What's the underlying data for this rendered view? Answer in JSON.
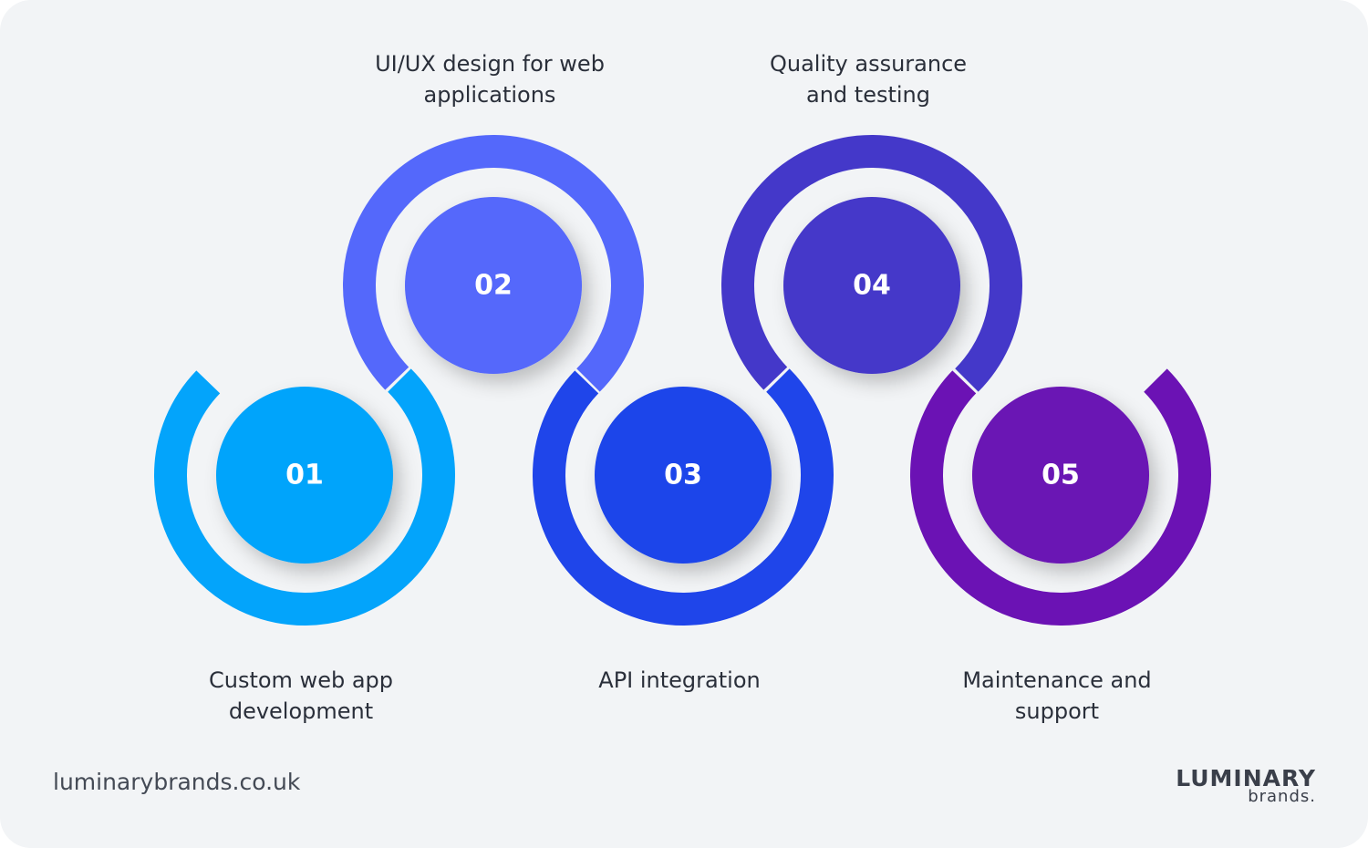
{
  "steps": [
    {
      "number": "01",
      "label_lines": [
        "Custom web app",
        "development"
      ],
      "color": "#03a4fb"
    },
    {
      "number": "02",
      "label_lines": [
        "UI/UX design for web",
        "applications"
      ],
      "color": "#5468fb"
    },
    {
      "number": "03",
      "label_lines": [
        "API integration"
      ],
      "color": "#1f45ea"
    },
    {
      "number": "04",
      "label_lines": [
        "Quality assurance",
        "and testing"
      ],
      "color": "#4438c9"
    },
    {
      "number": "05",
      "label_lines": [
        "Maintenance and",
        "support"
      ],
      "color": "#6b12b4"
    }
  ],
  "footer": {
    "website": "luminarybrands.co.uk",
    "logo_top": "LUMINARY",
    "logo_bottom": "brands."
  }
}
